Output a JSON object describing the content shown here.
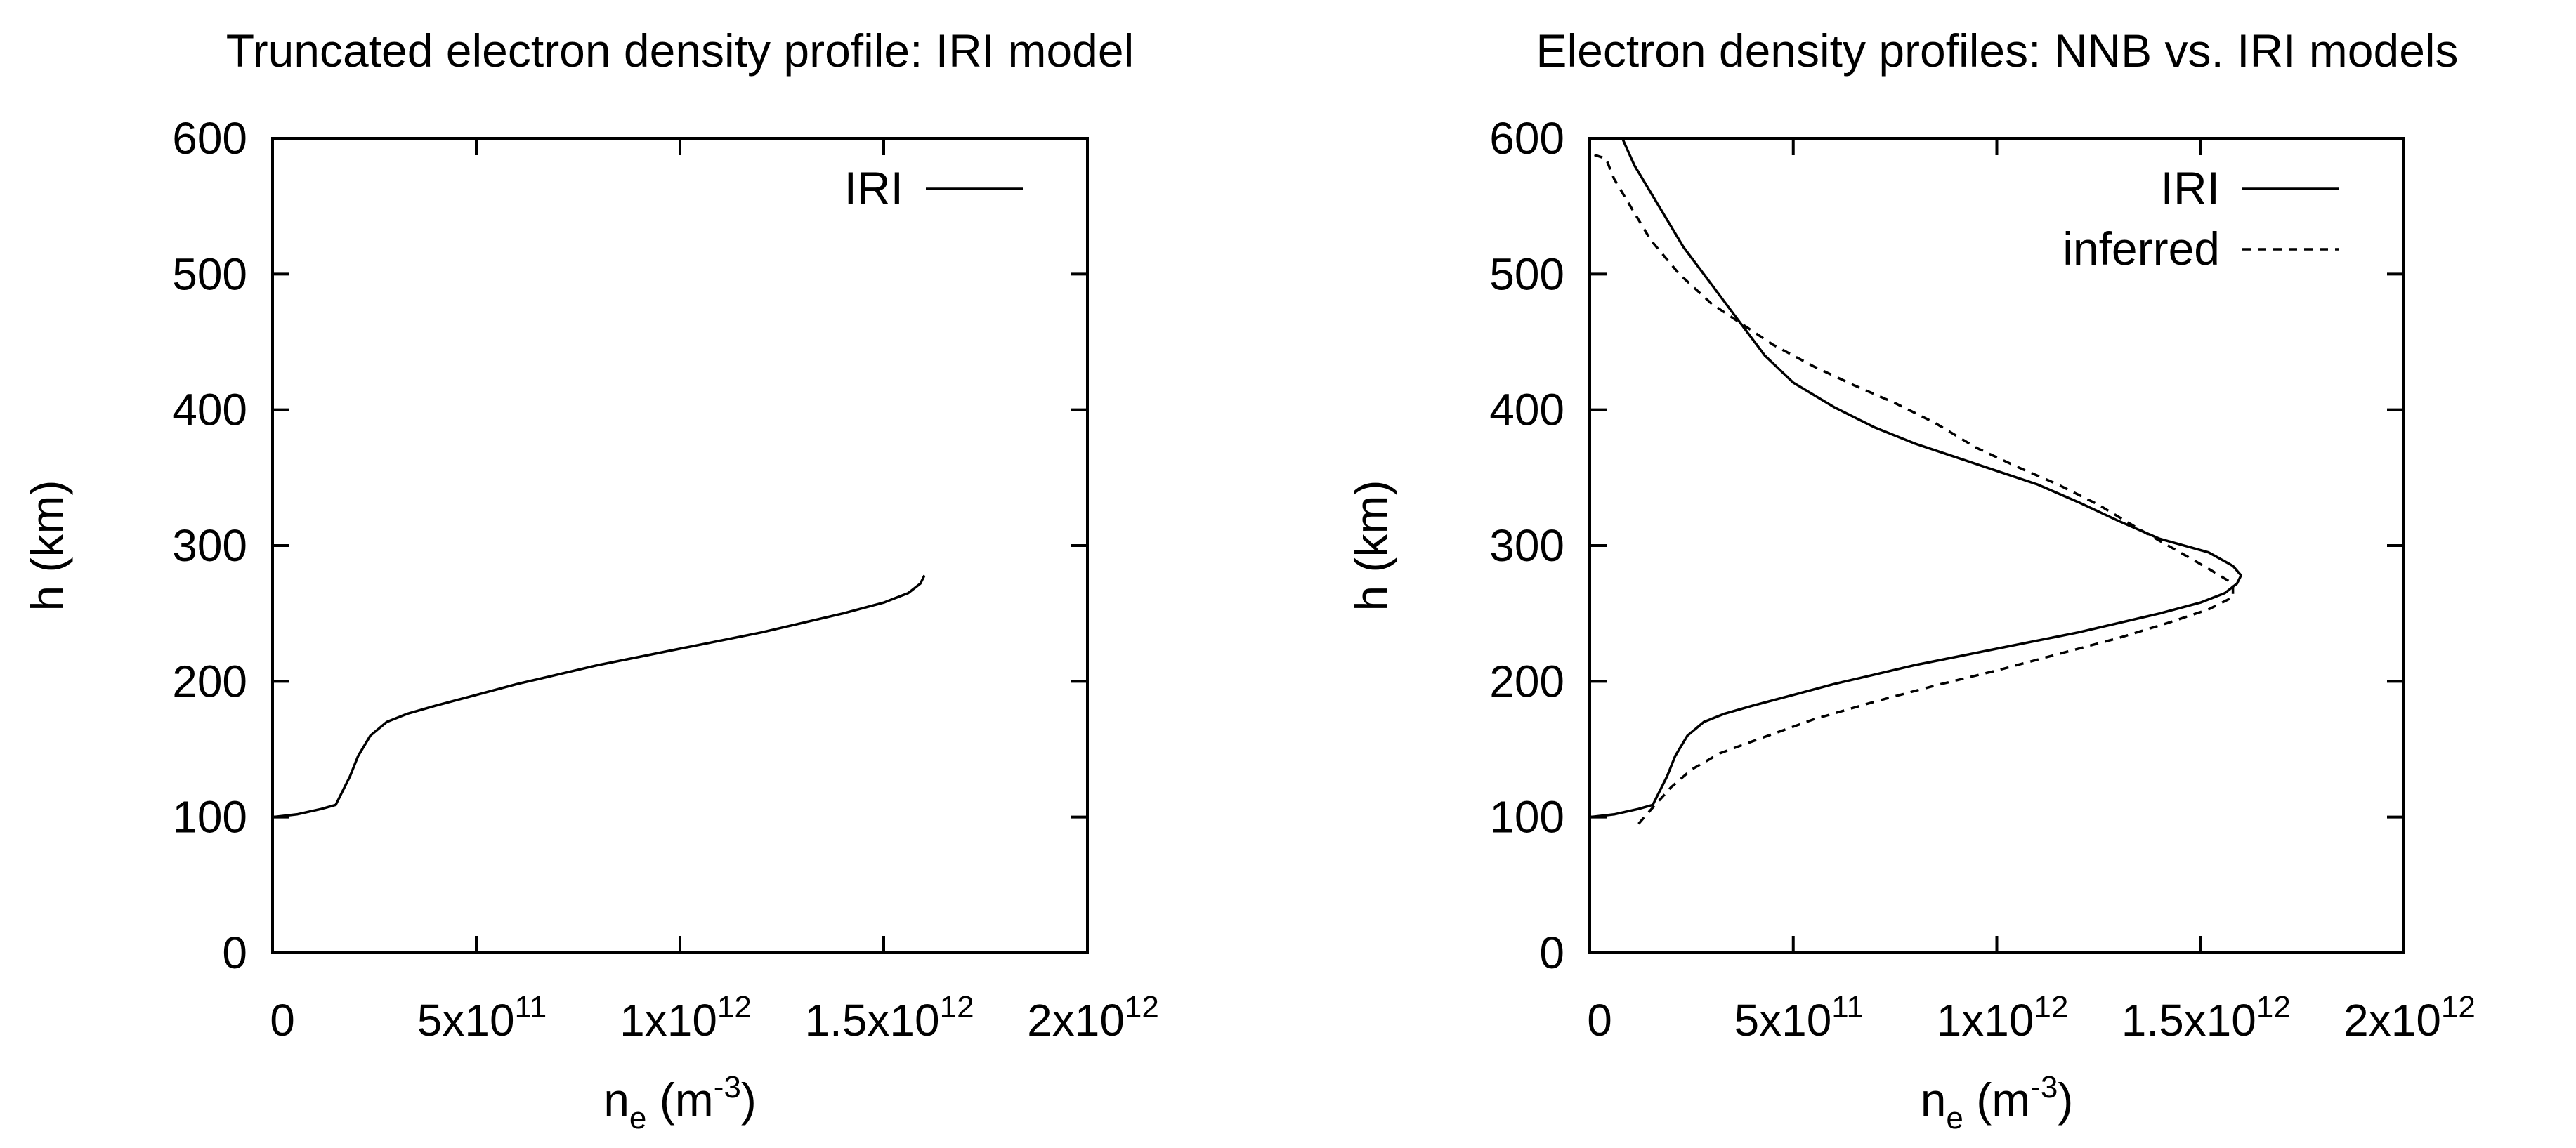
{
  "chart_data": [
    {
      "type": "line",
      "title": "Truncated electron density profile: IRI model",
      "xlabel": {
        "base": "n",
        "sub": "e",
        "unit_open": " (m",
        "unit_sup": "-3",
        "unit_close": ")"
      },
      "ylabel": "h (km)",
      "xlim": [
        0,
        2000000000000.0
      ],
      "ylim": [
        0,
        600
      ],
      "x_ticks": [
        {
          "value": 0,
          "base": "0",
          "exp": ""
        },
        {
          "value": 500000000000.0,
          "base": "5x10",
          "exp": "11"
        },
        {
          "value": 1000000000000.0,
          "base": "1x10",
          "exp": "12"
        },
        {
          "value": 1500000000000.0,
          "base": "1.5x10",
          "exp": "12"
        },
        {
          "value": 2000000000000.0,
          "base": "2x10",
          "exp": "12"
        }
      ],
      "y_ticks": [
        {
          "value": 0,
          "label": "0"
        },
        {
          "value": 100,
          "label": "100"
        },
        {
          "value": 200,
          "label": "200"
        },
        {
          "value": 300,
          "label": "300"
        },
        {
          "value": 400,
          "label": "400"
        },
        {
          "value": 500,
          "label": "500"
        },
        {
          "value": 600,
          "label": "600"
        }
      ],
      "grid": false,
      "legend_position": "top-right",
      "series": [
        {
          "name": "IRI",
          "style": "solid",
          "points": [
            [
              0.0,
              100
            ],
            [
              30000000000.0,
              101
            ],
            [
              60000000000.0,
              102
            ],
            [
              90000000000.0,
              104
            ],
            [
              120000000000.0,
              106
            ],
            [
              155000000000.0,
              109
            ],
            [
              170000000000.0,
              118
            ],
            [
              190000000000.0,
              130
            ],
            [
              210000000000.0,
              145
            ],
            [
              240000000000.0,
              160
            ],
            [
              280000000000.0,
              170
            ],
            [
              330000000000.0,
              176
            ],
            [
              400000000000.0,
              182
            ],
            [
              500000000000.0,
              190
            ],
            [
              600000000000.0,
              198
            ],
            [
              700000000000.0,
              205
            ],
            [
              800000000000.0,
              212
            ],
            [
              900000000000.0,
              218
            ],
            [
              1000000000000.0,
              224
            ],
            [
              1100000000000.0,
              230
            ],
            [
              1200000000000.0,
              236
            ],
            [
              1300000000000.0,
              243
            ],
            [
              1400000000000.0,
              250
            ],
            [
              1500000000000.0,
              258
            ],
            [
              1560000000000.0,
              265
            ],
            [
              1590000000000.0,
              272
            ],
            [
              1600000000000.0,
              278
            ]
          ]
        }
      ]
    },
    {
      "type": "line",
      "title": "Electron density profiles: NNB vs. IRI models",
      "xlabel": {
        "base": "n",
        "sub": "e",
        "unit_open": " (m",
        "unit_sup": "-3",
        "unit_close": ")"
      },
      "ylabel": "h (km)",
      "xlim": [
        0,
        2000000000000.0
      ],
      "ylim": [
        0,
        600
      ],
      "x_ticks": [
        {
          "value": 0,
          "base": "0",
          "exp": ""
        },
        {
          "value": 500000000000.0,
          "base": "5x10",
          "exp": "11"
        },
        {
          "value": 1000000000000.0,
          "base": "1x10",
          "exp": "12"
        },
        {
          "value": 1500000000000.0,
          "base": "1.5x10",
          "exp": "12"
        },
        {
          "value": 2000000000000.0,
          "base": "2x10",
          "exp": "12"
        }
      ],
      "y_ticks": [
        {
          "value": 0,
          "label": "0"
        },
        {
          "value": 100,
          "label": "100"
        },
        {
          "value": 200,
          "label": "200"
        },
        {
          "value": 300,
          "label": "300"
        },
        {
          "value": 400,
          "label": "400"
        },
        {
          "value": 500,
          "label": "500"
        },
        {
          "value": 600,
          "label": "600"
        }
      ],
      "grid": false,
      "legend_position": "top-right",
      "series": [
        {
          "name": "IRI",
          "style": "solid",
          "points": [
            [
              0.0,
              100
            ],
            [
              30000000000.0,
              101
            ],
            [
              60000000000.0,
              102
            ],
            [
              90000000000.0,
              104
            ],
            [
              120000000000.0,
              106
            ],
            [
              155000000000.0,
              109
            ],
            [
              170000000000.0,
              118
            ],
            [
              190000000000.0,
              130
            ],
            [
              210000000000.0,
              145
            ],
            [
              240000000000.0,
              160
            ],
            [
              280000000000.0,
              170
            ],
            [
              330000000000.0,
              176
            ],
            [
              400000000000.0,
              182
            ],
            [
              500000000000.0,
              190
            ],
            [
              600000000000.0,
              198
            ],
            [
              700000000000.0,
              205
            ],
            [
              800000000000.0,
              212
            ],
            [
              900000000000.0,
              218
            ],
            [
              1000000000000.0,
              224
            ],
            [
              1100000000000.0,
              230
            ],
            [
              1200000000000.0,
              236
            ],
            [
              1300000000000.0,
              243
            ],
            [
              1400000000000.0,
              250
            ],
            [
              1500000000000.0,
              258
            ],
            [
              1560000000000.0,
              265
            ],
            [
              1590000000000.0,
              272
            ],
            [
              1600000000000.0,
              278
            ],
            [
              1580000000000.0,
              285
            ],
            [
              1520000000000.0,
              295
            ],
            [
              1400000000000.0,
              305
            ],
            [
              1300000000000.0,
              318
            ],
            [
              1200000000000.0,
              332
            ],
            [
              1100000000000.0,
              345
            ],
            [
              1000000000000.0,
              355
            ],
            [
              900000000000.0,
              365
            ],
            [
              800000000000.0,
              375
            ],
            [
              700000000000.0,
              387
            ],
            [
              600000000000.0,
              402
            ],
            [
              500000000000.0,
              420
            ],
            [
              430000000000.0,
              440
            ],
            [
              380000000000.0,
              460
            ],
            [
              330000000000.0,
              480
            ],
            [
              280000000000.0,
              500
            ],
            [
              230000000000.0,
              520
            ],
            [
              190000000000.0,
              540
            ],
            [
              150000000000.0,
              560
            ],
            [
              110000000000.0,
              580
            ],
            [
              80000000000.0,
              600
            ]
          ]
        },
        {
          "name": "inferred",
          "style": "dashed",
          "points": [
            [
              120000000000.0,
              95
            ],
            [
              140000000000.0,
              102
            ],
            [
              170000000000.0,
              112
            ],
            [
              200000000000.0,
              122
            ],
            [
              250000000000.0,
              135
            ],
            [
              320000000000.0,
              147
            ],
            [
              420000000000.0,
              158
            ],
            [
              550000000000.0,
              172
            ],
            [
              700000000000.0,
              185
            ],
            [
              850000000000.0,
              197
            ],
            [
              1000000000000.0,
              208
            ],
            [
              1150000000000.0,
              220
            ],
            [
              1300000000000.0,
              232
            ],
            [
              1420000000000.0,
              243
            ],
            [
              1520000000000.0,
              253
            ],
            [
              1580000000000.0,
              262
            ],
            [
              1580000000000.0,
              272
            ],
            [
              1520000000000.0,
              283
            ],
            [
              1450000000000.0,
              295
            ],
            [
              1350000000000.0,
              312
            ],
            [
              1250000000000.0,
              330
            ],
            [
              1150000000000.0,
              345
            ],
            [
              1050000000000.0,
              358
            ],
            [
              950000000000.0,
              372
            ],
            [
              850000000000.0,
              390
            ],
            [
              750000000000.0,
              405
            ],
            [
              650000000000.0,
              418
            ],
            [
              550000000000.0,
              432
            ],
            [
              450000000000.0,
              448
            ],
            [
              380000000000.0,
              462
            ],
            [
              300000000000.0,
              478
            ],
            [
              220000000000.0,
              500
            ],
            [
              150000000000.0,
              525
            ],
            [
              100000000000.0,
              550
            ],
            [
              60000000000.0,
              570
            ],
            [
              40000000000.0,
              585
            ],
            [
              0.0,
              589
            ]
          ]
        }
      ]
    }
  ]
}
